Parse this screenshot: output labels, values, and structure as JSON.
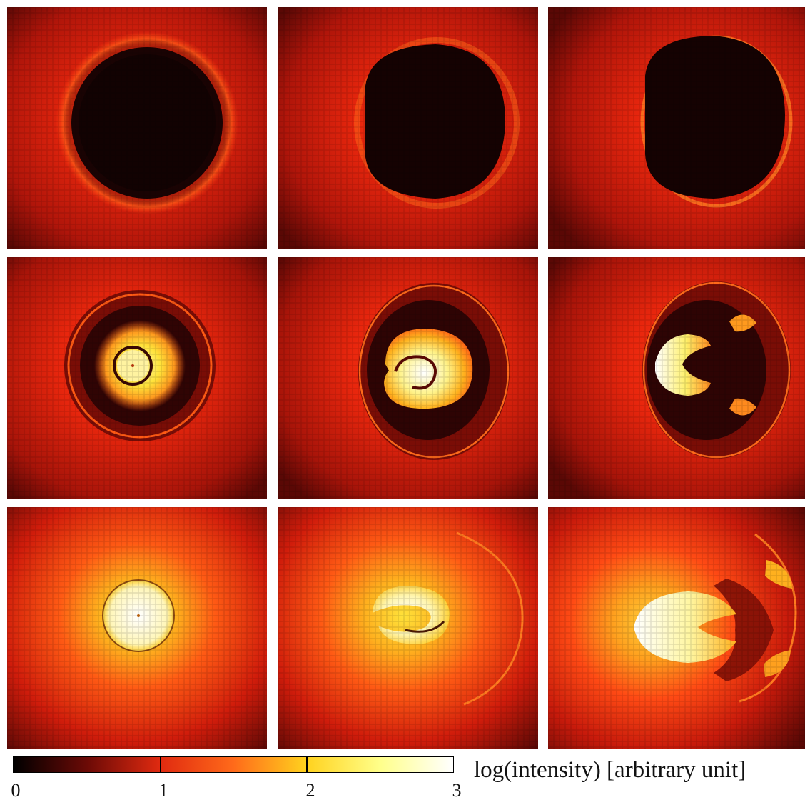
{
  "figure": {
    "panels": [
      {
        "row": 1,
        "col": 1,
        "pattern": "dark-disk"
      },
      {
        "row": 1,
        "col": 2,
        "pattern": "dark-disk"
      },
      {
        "row": 1,
        "col": 3,
        "pattern": "dark-disk"
      },
      {
        "row": 2,
        "col": 1,
        "pattern": "bright-ring-core"
      },
      {
        "row": 2,
        "col": 2,
        "pattern": "bright-swirl"
      },
      {
        "row": 2,
        "col": 3,
        "pattern": "bright-v-shape"
      },
      {
        "row": 3,
        "col": 1,
        "pattern": "bright-disk"
      },
      {
        "row": 3,
        "col": 2,
        "pattern": "bright-swirl-arc"
      },
      {
        "row": 3,
        "col": 3,
        "pattern": "bright-v-shape-arc"
      }
    ]
  },
  "colorbar": {
    "label": "log(intensity) [arbitrary unit]",
    "ticks": [
      "0",
      "1",
      "2",
      "3"
    ],
    "range": [
      0,
      3
    ],
    "colors": [
      "#000000",
      "#6b0a06",
      "#e02a10",
      "#ff6a1a",
      "#ffd21e",
      "#ffff8a",
      "#ffffff"
    ]
  }
}
